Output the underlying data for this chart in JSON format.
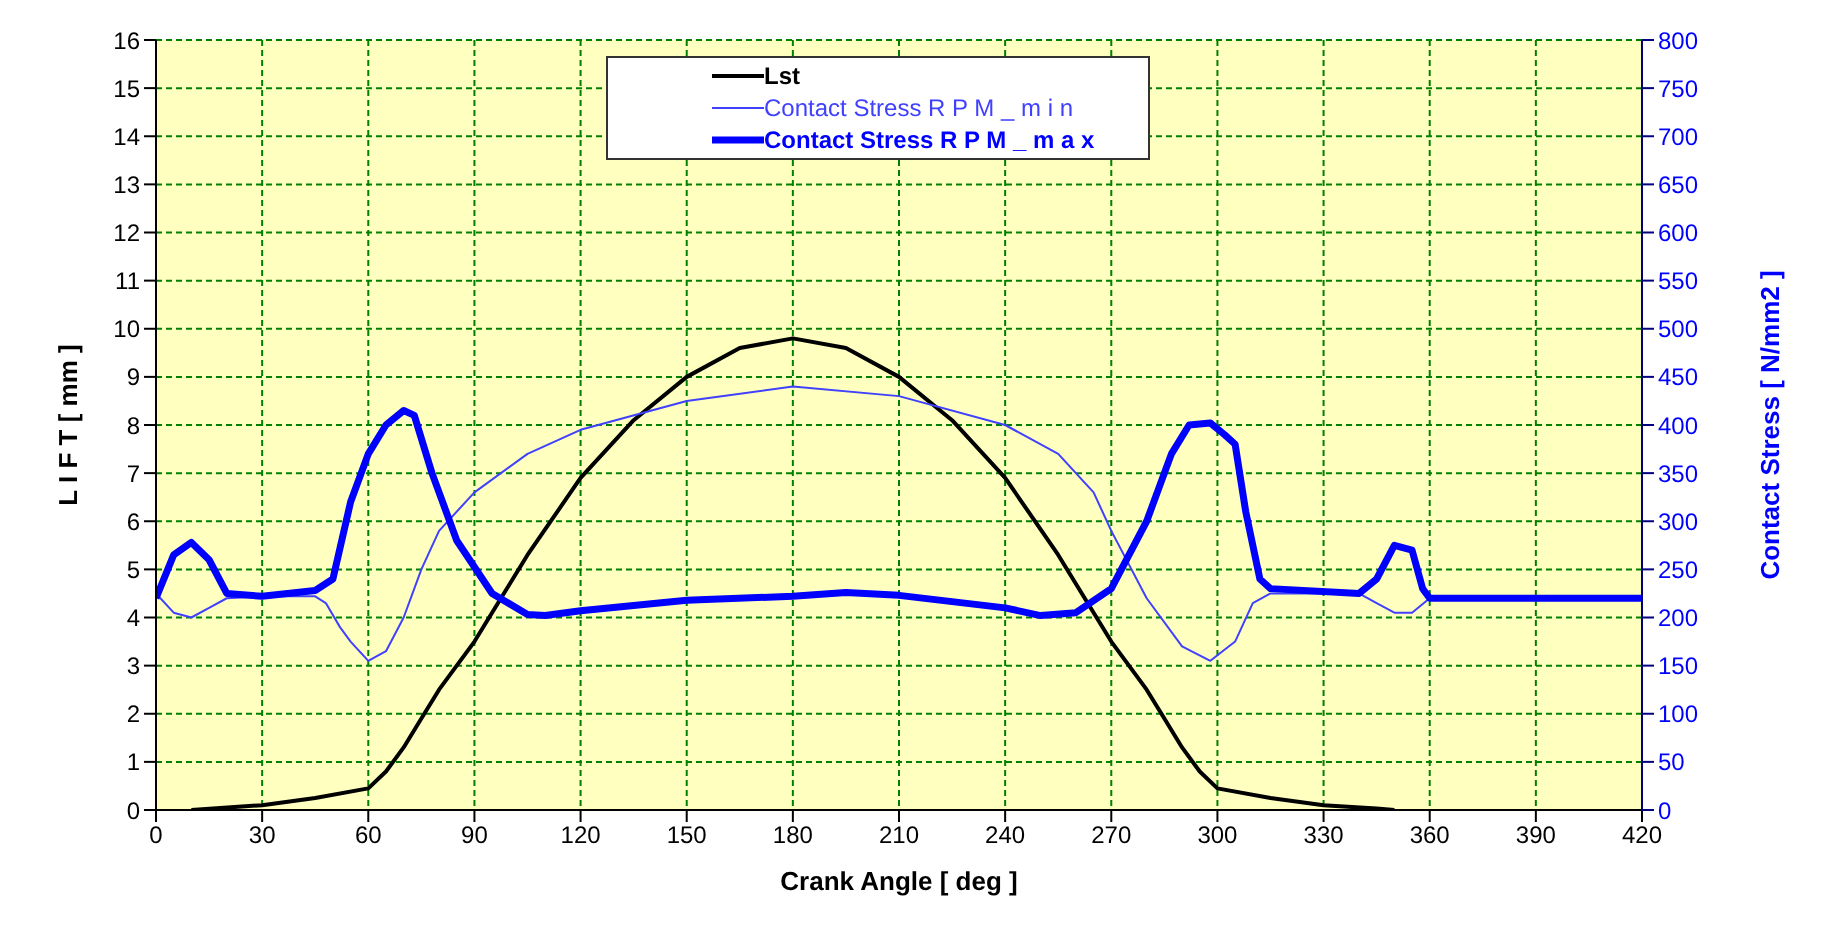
{
  "chart_data": {
    "type": "line",
    "xlabel": "Crank Angle    [ deg ]",
    "ylabel": "L I F T    [ mm ]",
    "y2label": "Contact Stress   [ N/mm2 ]",
    "xlim": [
      0,
      420
    ],
    "xticks": [
      0,
      30,
      60,
      90,
      120,
      150,
      180,
      210,
      240,
      270,
      300,
      330,
      360,
      390,
      420
    ],
    "ylim": [
      0,
      16
    ],
    "yticks": [
      0,
      1,
      2,
      3,
      4,
      5,
      6,
      7,
      8,
      9,
      10,
      11,
      12,
      13,
      14,
      15,
      16
    ],
    "y2lim": [
      0,
      800
    ],
    "y2ticks": [
      0,
      50,
      100,
      150,
      200,
      250,
      300,
      350,
      400,
      450,
      500,
      550,
      600,
      650,
      700,
      750,
      800
    ],
    "grid": true,
    "legend": "top",
    "marker": "none",
    "series": [
      {
        "name": "Lst",
        "color": "#000000",
        "x": [
          10,
          30,
          45,
          60,
          65,
          70,
          75,
          80,
          90,
          105,
          120,
          135,
          150,
          165,
          180,
          195,
          210,
          225,
          240,
          255,
          270,
          280,
          285,
          290,
          295,
          300,
          315,
          330,
          345,
          350
        ],
        "values": [
          0,
          0.1,
          0.25,
          0.45,
          0.8,
          1.3,
          1.9,
          2.5,
          3.5,
          5.3,
          6.9,
          8.1,
          9.0,
          9.6,
          9.8,
          9.6,
          9.0,
          8.1,
          6.9,
          5.3,
          3.5,
          2.5,
          1.9,
          1.3,
          0.8,
          0.45,
          0.25,
          0.1,
          0.03,
          0
        ]
      },
      {
        "name": "Contact Stress   R P M _ m i n",
        "color": "#4040ff",
        "axis": "y2",
        "x": [
          0,
          5,
          10,
          15,
          20,
          30,
          45,
          48,
          52,
          55,
          60,
          65,
          70,
          75,
          80,
          90,
          105,
          120,
          150,
          180,
          210,
          240,
          255,
          265,
          270,
          280,
          290,
          298,
          305,
          310,
          315,
          340,
          345,
          350,
          355,
          360,
          420
        ],
        "values": [
          225,
          205,
          200,
          210,
          220,
          222,
          222,
          215,
          190,
          175,
          155,
          165,
          200,
          250,
          290,
          330,
          370,
          395,
          425,
          440,
          430,
          400,
          370,
          330,
          290,
          220,
          170,
          155,
          175,
          215,
          225,
          225,
          215,
          205,
          205,
          220,
          220
        ]
      },
      {
        "name": "Contact Stress   R P M _ m a x",
        "color": "#0000ff",
        "axis": "y2",
        "x": [
          0,
          5,
          10,
          15,
          20,
          30,
          45,
          50,
          55,
          60,
          65,
          70,
          73,
          78,
          85,
          95,
          105,
          110,
          120,
          150,
          180,
          195,
          210,
          240,
          250,
          260,
          270,
          280,
          287,
          292,
          298,
          302,
          305,
          308,
          312,
          315,
          340,
          345,
          350,
          355,
          358,
          360,
          420
        ],
        "values": [
          220,
          265,
          278,
          260,
          225,
          222,
          228,
          240,
          320,
          370,
          400,
          415,
          410,
          350,
          280,
          225,
          203,
          202,
          207,
          218,
          222,
          226,
          223,
          210,
          202,
          205,
          230,
          300,
          370,
          400,
          402,
          390,
          380,
          310,
          240,
          230,
          225,
          240,
          275,
          270,
          230,
          220,
          220
        ]
      }
    ]
  }
}
